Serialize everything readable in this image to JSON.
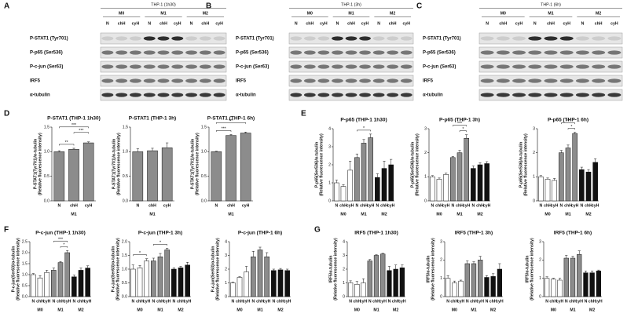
{
  "panel_letters": [
    "A",
    "B",
    "C",
    "D",
    "E",
    "F",
    "G"
  ],
  "blots": [
    {
      "title": "THP-1 (1h30)",
      "groups": [
        "M0",
        "M1",
        "M2"
      ],
      "lanes": [
        "N",
        "chH",
        "cyH",
        "N",
        "chH",
        "cyH",
        "N",
        "chH",
        "cyH"
      ],
      "rows": [
        "P-STAT1 (Tyr701)",
        "P-p65 (Ser536)",
        "P-c-jun (Ser63)",
        "IRF5",
        "α-tubulin"
      ]
    },
    {
      "title": "THP-1 (3h)",
      "groups": [
        "M0",
        "M1",
        "M2"
      ],
      "lanes": [
        "N",
        "chH",
        "cyH",
        "N",
        "chH",
        "cyH",
        "N",
        "chH",
        "cyH"
      ],
      "rows": [
        "P-STAT1 (Tyr701)",
        "P-p65 (Ser536)",
        "P-c-jun (Ser63)",
        "IRF5",
        "α-tubulin"
      ]
    },
    {
      "title": "THP-1 (6h)",
      "groups": [
        "M0",
        "M1",
        "M2"
      ],
      "lanes": [
        "N",
        "chH",
        "cyH",
        "N",
        "chH",
        "cyH",
        "N",
        "chH",
        "cyH"
      ],
      "rows": [
        "P-STAT1 (Tyr701)",
        "P-p65 (Ser536)",
        "P-c-jun (Ser63)",
        "IRF5",
        "α-tubulin"
      ]
    }
  ],
  "chart_data": [
    {
      "type": "bar",
      "title": "P-STAT1 (THP-1 1h30)",
      "y_label": [
        "P-STAT1(Tyr701)/α-tubulin",
        "(Relative fluorescence intensity)"
      ],
      "categories": [
        "N",
        "chH",
        "cyH"
      ],
      "groups": [
        "M1"
      ],
      "group_colors": [
        "#8c8c8c"
      ],
      "values": [
        1.0,
        1.05,
        1.18
      ],
      "errors": [
        0.02,
        0.02,
        0.02
      ],
      "ylim": [
        0,
        1.5
      ],
      "yticks": [
        {
          "value": 0,
          "label": "0.0"
        },
        0.5,
        {
          "value": 1,
          "label": "1.0"
        },
        1.5
      ],
      "annotations": [
        {
          "text": "**",
          "from": 0,
          "to": 1
        },
        {
          "text": "***",
          "from": 1,
          "to": 2
        },
        {
          "text": "***",
          "from": 0,
          "to": 2
        }
      ]
    },
    {
      "type": "bar",
      "title": "P-STAT1 (THP-1 3h)",
      "y_label": [
        "P-STAT1(Tyr701)/α-tubulin",
        "(Relative fluorescence intensity)"
      ],
      "categories": [
        "N",
        "chH",
        "cyH"
      ],
      "groups": [
        "M1"
      ],
      "group_colors": [
        "#8c8c8c"
      ],
      "values": [
        1.0,
        1.02,
        1.08
      ],
      "errors": [
        0.06,
        0.05,
        0.1
      ],
      "ylim": [
        0,
        1.5
      ],
      "yticks": [
        {
          "value": 0,
          "label": "0.0"
        },
        0.5,
        {
          "value": 1,
          "label": "1.0"
        },
        1.5
      ],
      "annotations": []
    },
    {
      "type": "bar",
      "title": "P-STAT1 (THP-1 6h)",
      "y_label": [
        "P-STAT1(Tyr701)/α-tubulin",
        "(Relative fluorescence intensity)"
      ],
      "categories": [
        "N",
        "chH",
        "cyH"
      ],
      "groups": [
        "M1"
      ],
      "group_colors": [
        "#8c8c8c"
      ],
      "values": [
        1.0,
        1.33,
        1.38
      ],
      "errors": [
        0.01,
        0.02,
        0.02
      ],
      "ylim": [
        0,
        1.5
      ],
      "yticks": [
        {
          "value": 0,
          "label": "0.0"
        },
        0.5,
        {
          "value": 1,
          "label": "1.0"
        },
        1.5
      ],
      "annotations": [
        {
          "text": "***",
          "from": 0,
          "to": 1
        },
        {
          "text": "***",
          "from": 0,
          "to": 2
        }
      ]
    },
    {
      "type": "bar",
      "title": "P-p65 (THP-1 1h30)",
      "y_label": [
        "P-p65(Ser536)/α-tubulin",
        "(Relative fluorescence intensity)"
      ],
      "categories": [
        "N",
        "chH",
        "cyH",
        "N",
        "chH",
        "cyH",
        "N",
        "chH",
        "cyH"
      ],
      "groups": [
        "M0",
        "M1",
        "M2"
      ],
      "group_colors": [
        "#ffffff",
        "#8c8c8c",
        "#111111"
      ],
      "values": [
        1.0,
        0.8,
        1.7,
        2.4,
        3.2,
        3.5,
        1.3,
        1.8,
        2.0
      ],
      "errors": [
        0.15,
        0.1,
        0.5,
        0.2,
        0.2,
        0.2,
        0.2,
        0.4,
        0.3
      ],
      "ylim": [
        0,
        4
      ],
      "yticks": [
        0,
        1,
        2,
        3,
        4
      ],
      "annotations": [
        {
          "text": "*",
          "from": 3,
          "to": 5
        }
      ]
    },
    {
      "type": "bar",
      "title": "P-p65 (THP-1 3h)",
      "y_label": [
        "P-p65(Ser536)/α-tubulin",
        "(Relative fluorescence intensity)"
      ],
      "categories": [
        "N",
        "chH",
        "cyH",
        "N",
        "chH",
        "cyH",
        "N",
        "chH",
        "cyH"
      ],
      "groups": [
        "M0",
        "M1",
        "M2"
      ],
      "group_colors": [
        "#ffffff",
        "#8c8c8c",
        "#111111"
      ],
      "values": [
        1.0,
        0.9,
        1.1,
        1.8,
        2.0,
        2.6,
        1.35,
        1.5,
        1.55
      ],
      "errors": [
        0.05,
        0.05,
        0.05,
        0.05,
        0.1,
        0.15,
        0.1,
        0.08,
        0.08
      ],
      "ylim": [
        0,
        3
      ],
      "yticks": [
        0,
        1,
        2,
        3
      ],
      "annotations": [
        {
          "text": "*",
          "from": 4,
          "to": 5
        },
        {
          "text": "***",
          "from": 3,
          "to": 5
        }
      ]
    },
    {
      "type": "bar",
      "title": "P-p65 (THP-1 6h)",
      "y_label": [
        "P-p65(Ser536)/α-tubulin",
        "(Relative fluorescence intensity)"
      ],
      "categories": [
        "N",
        "chH",
        "cyH",
        "N",
        "chH",
        "cyH",
        "N",
        "chH",
        "cyH"
      ],
      "groups": [
        "M0",
        "M1",
        "M2"
      ],
      "group_colors": [
        "#ffffff",
        "#8c8c8c",
        "#111111"
      ],
      "values": [
        1.0,
        0.9,
        0.85,
        2.0,
        2.2,
        2.8,
        1.3,
        1.2,
        1.6
      ],
      "errors": [
        0.05,
        0.05,
        0.08,
        0.1,
        0.12,
        0.05,
        0.1,
        0.1,
        0.15
      ],
      "ylim": [
        0,
        3
      ],
      "yticks": [
        0,
        1,
        2,
        3
      ],
      "annotations": [
        {
          "text": "*",
          "from": 4,
          "to": 5
        },
        {
          "text": "**",
          "from": 3,
          "to": 5
        }
      ]
    },
    {
      "type": "bar",
      "title": "P-c-jun (THP-1 1h30)",
      "y_label": [
        "P-c-jun(Ser63)/α-tubulin",
        "(Relative fluorescence intensity)"
      ],
      "categories": [
        "N",
        "chH",
        "cyH",
        "N",
        "chH",
        "cyH",
        "N",
        "chH",
        "cyH"
      ],
      "groups": [
        "M0",
        "M1",
        "M2"
      ],
      "group_colors": [
        "#ffffff",
        "#8c8c8c",
        "#111111"
      ],
      "values": [
        1.0,
        0.85,
        1.1,
        1.2,
        1.55,
        2.0,
        0.9,
        1.2,
        1.3
      ],
      "errors": [
        0.05,
        0.1,
        0.1,
        0.1,
        0.05,
        0.1,
        0.08,
        0.1,
        0.1
      ],
      "ylim": [
        0,
        2.5
      ],
      "yticks": [
        {
          "value": 0,
          "label": "0.0"
        },
        0.5,
        {
          "value": 1,
          "label": "1.0"
        },
        1.5,
        {
          "value": 2,
          "label": "2.0"
        },
        2.5
      ],
      "annotations": [
        {
          "text": "*",
          "from": 4,
          "to": 5
        },
        {
          "text": "***",
          "from": 3,
          "to": 5
        }
      ]
    },
    {
      "type": "bar",
      "title": "P-c-jun (THP-1 3h)",
      "y_label": [
        "P-c-jun(Ser63)/α-tubulin",
        "(Relative fluorescence intensity)"
      ],
      "categories": [
        "N",
        "chH",
        "cyH",
        "N",
        "chH",
        "cyH",
        "N",
        "chH",
        "cyH"
      ],
      "groups": [
        "M0",
        "M1",
        "M2"
      ],
      "group_colors": [
        "#ffffff",
        "#8c8c8c",
        "#111111"
      ],
      "values": [
        1.0,
        1.05,
        1.3,
        1.3,
        1.45,
        1.7,
        1.0,
        1.05,
        1.15
      ],
      "errors": [
        0.15,
        0.08,
        0.08,
        0.1,
        0.12,
        0.06,
        0.05,
        0.05,
        0.1
      ],
      "ylim": [
        0,
        2
      ],
      "yticks": [
        {
          "value": 0,
          "label": "0.0"
        },
        0.5,
        {
          "value": 1,
          "label": "1.0"
        },
        1.5,
        {
          "value": 2,
          "label": "2.0"
        }
      ],
      "annotations": [
        {
          "text": "*",
          "from": 0,
          "to": 2
        },
        {
          "text": "*",
          "from": 3,
          "to": 5
        }
      ]
    },
    {
      "type": "bar",
      "title": "P-c-jun (THP-1 6h)",
      "y_label": [
        "P-c-jun(Ser63)/α-tubulin",
        "(Relative fluorescence intensity)"
      ],
      "categories": [
        "N",
        "chH",
        "cyH",
        "N",
        "chH",
        "cyH",
        "N",
        "chH",
        "cyH"
      ],
      "groups": [
        "M0",
        "M1",
        "M2"
      ],
      "group_colors": [
        "#ffffff",
        "#8c8c8c",
        "#111111"
      ],
      "values": [
        1.0,
        1.4,
        1.8,
        2.9,
        3.4,
        2.9,
        1.9,
        1.95,
        1.9
      ],
      "errors": [
        0.05,
        0.05,
        0.4,
        0.4,
        0.2,
        0.3,
        0.1,
        0.1,
        0.1
      ],
      "ylim": [
        0,
        4
      ],
      "yticks": [
        0,
        1,
        2,
        3,
        4
      ],
      "annotations": []
    },
    {
      "type": "bar",
      "title": "IRF5 (THP-1 1h30)",
      "y_label": [
        "IRF5/α-tubulin",
        "(Relative fluorescence intensity)"
      ],
      "categories": [
        "N",
        "chH",
        "cyH",
        "N",
        "chH",
        "cyH",
        "N",
        "chH",
        "cyH"
      ],
      "groups": [
        "M0",
        "M1",
        "M2"
      ],
      "group_colors": [
        "#ffffff",
        "#8c8c8c",
        "#111111"
      ],
      "values": [
        1.0,
        0.9,
        1.0,
        2.6,
        3.0,
        3.1,
        1.9,
        2.0,
        2.1
      ],
      "errors": [
        0.15,
        0.2,
        0.3,
        0.1,
        0.05,
        0.05,
        0.3,
        0.3,
        0.2
      ],
      "ylim": [
        0,
        4
      ],
      "yticks": [
        0,
        1,
        2,
        3,
        4
      ],
      "annotations": []
    },
    {
      "type": "bar",
      "title": "IRF5 (THP-1 3h)",
      "y_label": [
        "IRF5/α-tubulin",
        "(Relative fluorescence intensity)"
      ],
      "categories": [
        "N",
        "chH",
        "cyH",
        "N",
        "chH",
        "cyH",
        "N",
        "chH",
        "cyH"
      ],
      "groups": [
        "M0",
        "M1",
        "M2"
      ],
      "group_colors": [
        "#ffffff",
        "#8c8c8c",
        "#111111"
      ],
      "values": [
        1.0,
        0.75,
        0.85,
        1.8,
        1.8,
        2.0,
        1.05,
        1.1,
        1.5
      ],
      "errors": [
        0.15,
        0.1,
        0.05,
        0.15,
        0.1,
        0.2,
        0.1,
        0.15,
        0.3
      ],
      "ylim": [
        0,
        3
      ],
      "yticks": [
        0,
        1,
        2,
        3
      ],
      "annotations": []
    },
    {
      "type": "bar",
      "title": "IRF5 (THP-1 6h)",
      "y_label": [
        "IRF5/α-tubulin",
        "(Relative fluorescence intensity)"
      ],
      "categories": [
        "N",
        "chH",
        "cyH",
        "N",
        "chH",
        "cyH",
        "N",
        "chH",
        "cyH"
      ],
      "groups": [
        "M0",
        "M1",
        "M2"
      ],
      "group_colors": [
        "#ffffff",
        "#8c8c8c",
        "#111111"
      ],
      "values": [
        1.0,
        0.95,
        0.9,
        2.1,
        2.1,
        2.3,
        1.3,
        1.3,
        1.4
      ],
      "errors": [
        0.08,
        0.05,
        0.1,
        0.15,
        0.1,
        0.2,
        0.1,
        0.1,
        0.05
      ],
      "ylim": [
        0,
        3
      ],
      "yticks": [
        0,
        1,
        2,
        3
      ],
      "annotations": []
    }
  ]
}
